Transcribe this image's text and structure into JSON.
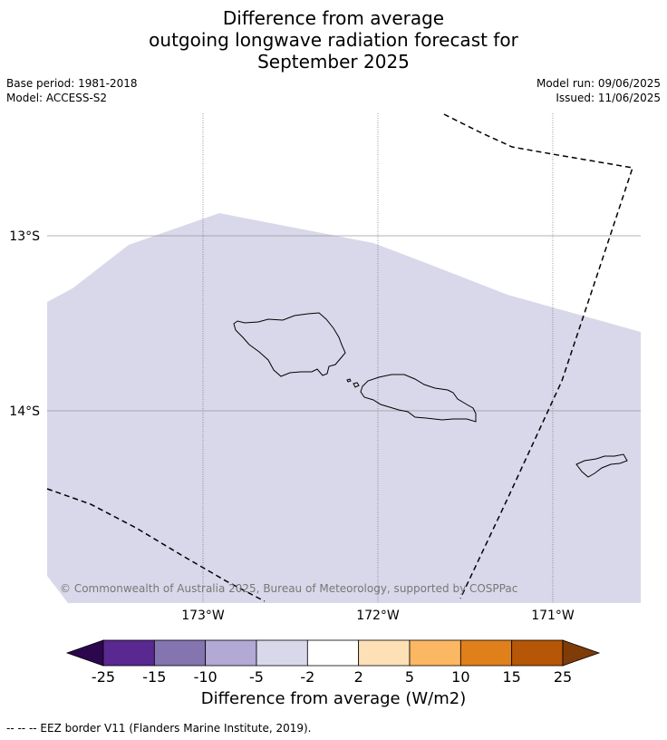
{
  "title": {
    "line1": "Difference from average",
    "line2": "outgoing longwave radiation forecast for",
    "line3": "September 2025"
  },
  "meta": {
    "base_period": "Base period: 1981-2018",
    "model": "Model: ACCESS-S2",
    "model_run": "Model run: 09/06/2025",
    "issued": "Issued: 11/06/2025"
  },
  "map": {
    "extent_lon": [
      -173.88,
      -170.52
    ],
    "extent_lat": [
      -15.06,
      -12.7
    ],
    "lat_ticks": [
      {
        "value": -13,
        "label": "13°S"
      },
      {
        "value": -14,
        "label": "14°S"
      }
    ],
    "lon_ticks": [
      {
        "value": -173,
        "label": "173°W"
      },
      {
        "value": -172,
        "label": "172°W"
      },
      {
        "value": -171,
        "label": "171°W"
      }
    ],
    "copyright": "© Commonwealth of Australia 2025, Bureau of Meteorology, supported by COSPPac",
    "fill_color": "#d8d8ea",
    "anomaly_class": "-5 to -2"
  },
  "colorbar": {
    "label": "Difference from average (W/m2)",
    "ticks": [
      "-25",
      "-15",
      "-10",
      "-5",
      "-2",
      "2",
      "5",
      "10",
      "15",
      "25"
    ],
    "colors": [
      "#5a2891",
      "#8474b0",
      "#b2a9d4",
      "#d8d8ea",
      "#ffffff",
      "#fde0b6",
      "#fcb763",
      "#e0801a",
      "#b55707"
    ],
    "under_color": "#2d0650",
    "over_color": "#7f3b08"
  },
  "footer": "--  --  -- EEZ border V11 (Flanders Marine Institute, 2019)."
}
